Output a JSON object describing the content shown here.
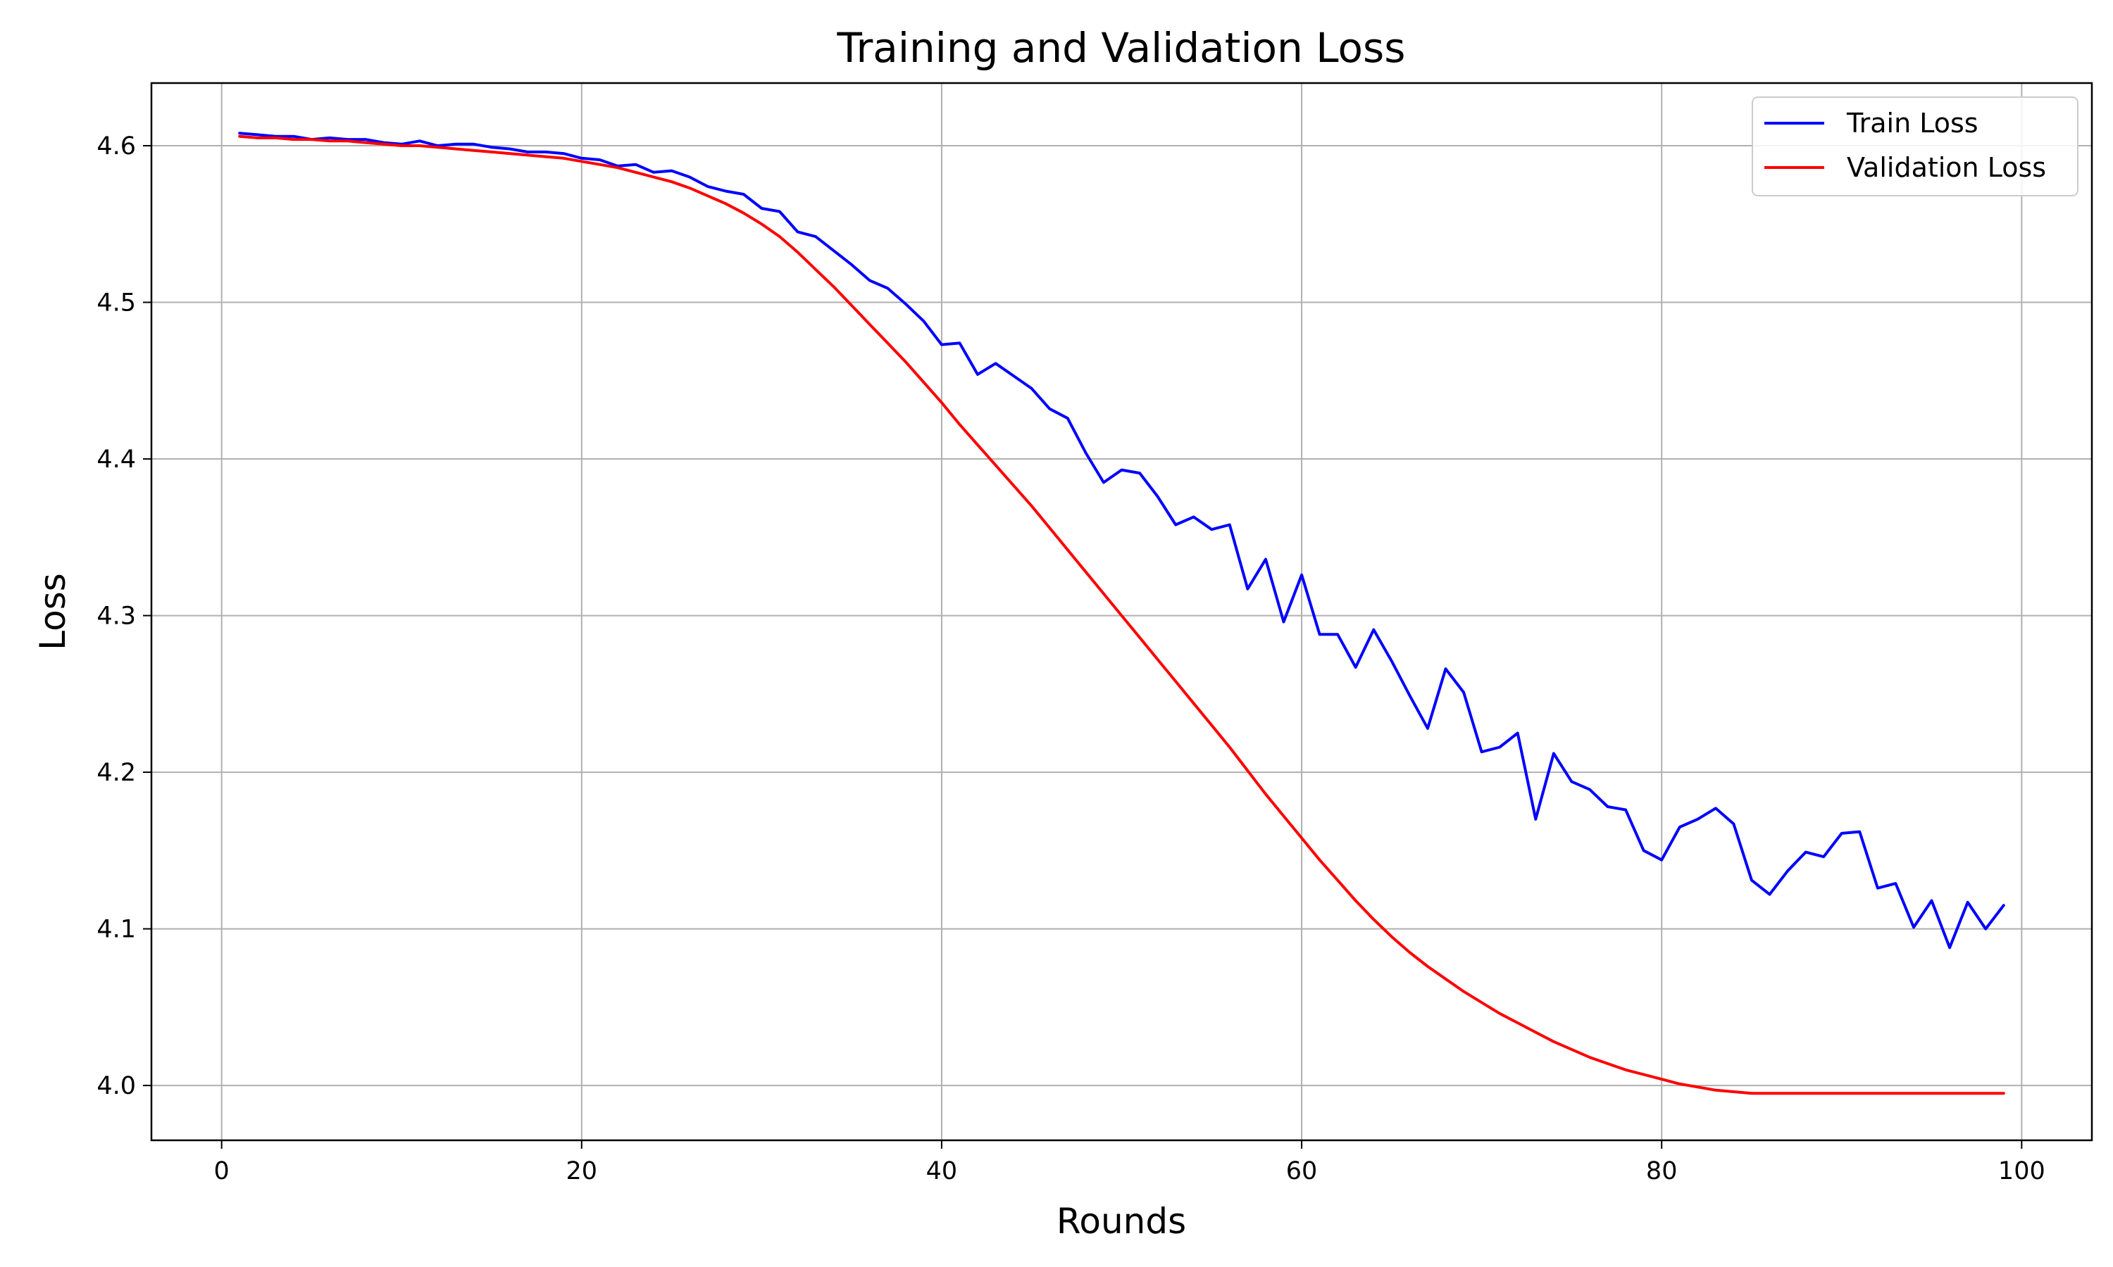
{
  "chart_data": {
    "type": "line",
    "title": "Training and Validation Loss",
    "xlabel": "Rounds",
    "ylabel": "Loss",
    "xlim": [
      -3.9,
      103.9
    ],
    "ylim": [
      3.965,
      4.64
    ],
    "x_ticks": [
      0,
      20,
      40,
      60,
      80,
      100
    ],
    "y_ticks": [
      4.0,
      4.1,
      4.2,
      4.3,
      4.4,
      4.5,
      4.6
    ],
    "grid": true,
    "legend_position": "top-right",
    "x": [
      1,
      2,
      3,
      4,
      5,
      6,
      7,
      8,
      9,
      10,
      11,
      12,
      13,
      14,
      15,
      16,
      17,
      18,
      19,
      20,
      21,
      22,
      23,
      24,
      25,
      26,
      27,
      28,
      29,
      30,
      31,
      32,
      33,
      34,
      35,
      36,
      37,
      38,
      39,
      40,
      41,
      42,
      43,
      44,
      45,
      46,
      47,
      48,
      49,
      50,
      51,
      52,
      53,
      54,
      55,
      56,
      57,
      58,
      59,
      60,
      61,
      62,
      63,
      64,
      65,
      66,
      67,
      68,
      69,
      70,
      71,
      72,
      73,
      74,
      75,
      76,
      77,
      78,
      79,
      80,
      81,
      82,
      83,
      84,
      85,
      86,
      87,
      88,
      89,
      90,
      91,
      92,
      93,
      94,
      95,
      96,
      97,
      98,
      99
    ],
    "series": [
      {
        "name": "Train Loss",
        "color": "#0000ff",
        "values": [
          4.608,
          4.607,
          4.606,
          4.606,
          4.604,
          4.605,
          4.604,
          4.604,
          4.602,
          4.601,
          4.603,
          4.6,
          4.601,
          4.601,
          4.599,
          4.598,
          4.596,
          4.596,
          4.595,
          4.592,
          4.591,
          4.587,
          4.588,
          4.583,
          4.584,
          4.58,
          4.574,
          4.571,
          4.569,
          4.56,
          4.558,
          4.545,
          4.542,
          4.533,
          4.524,
          4.514,
          4.509,
          4.499,
          4.488,
          4.473,
          4.474,
          4.454,
          4.461,
          4.453,
          4.445,
          4.432,
          4.426,
          4.404,
          4.385,
          4.393,
          4.391,
          4.376,
          4.358,
          4.363,
          4.355,
          4.358,
          4.317,
          4.336,
          4.296,
          4.326,
          4.288,
          4.288,
          4.267,
          4.291,
          4.271,
          4.249,
          4.228,
          4.266,
          4.251,
          4.213,
          4.216,
          4.225,
          4.17,
          4.212,
          4.194,
          4.189,
          4.178,
          4.176,
          4.15,
          4.144,
          4.165,
          4.17,
          4.177,
          4.167,
          4.131,
          4.122,
          4.137,
          4.149,
          4.146,
          4.161,
          4.162,
          4.126,
          4.129,
          4.101,
          4.118,
          4.088,
          4.117,
          4.1,
          4.115
        ]
      },
      {
        "name": "Validation Loss",
        "color": "#ff0000",
        "values": [
          4.606,
          4.605,
          4.605,
          4.604,
          4.604,
          4.603,
          4.603,
          4.602,
          4.601,
          4.6,
          4.6,
          4.599,
          4.598,
          4.597,
          4.596,
          4.595,
          4.594,
          4.593,
          4.592,
          4.59,
          4.588,
          4.586,
          4.583,
          4.58,
          4.577,
          4.573,
          4.568,
          4.563,
          4.557,
          4.55,
          4.542,
          4.532,
          4.521,
          4.51,
          4.498,
          4.486,
          4.474,
          4.462,
          4.449,
          4.436,
          4.422,
          4.409,
          4.396,
          4.383,
          4.37,
          4.356,
          4.342,
          4.328,
          4.314,
          4.3,
          4.286,
          4.272,
          4.258,
          4.244,
          4.23,
          4.216,
          4.201,
          4.186,
          4.172,
          4.158,
          4.144,
          4.131,
          4.118,
          4.106,
          4.095,
          4.085,
          4.076,
          4.068,
          4.06,
          4.053,
          4.046,
          4.04,
          4.034,
          4.028,
          4.023,
          4.018,
          4.014,
          4.01,
          4.007,
          4.004,
          4.001,
          3.999,
          3.997,
          3.996,
          3.995,
          3.995,
          3.995,
          3.995,
          3.995,
          3.995,
          3.995,
          3.995,
          3.995,
          3.995,
          3.995,
          3.995,
          3.995,
          3.995,
          3.995
        ]
      }
    ]
  }
}
